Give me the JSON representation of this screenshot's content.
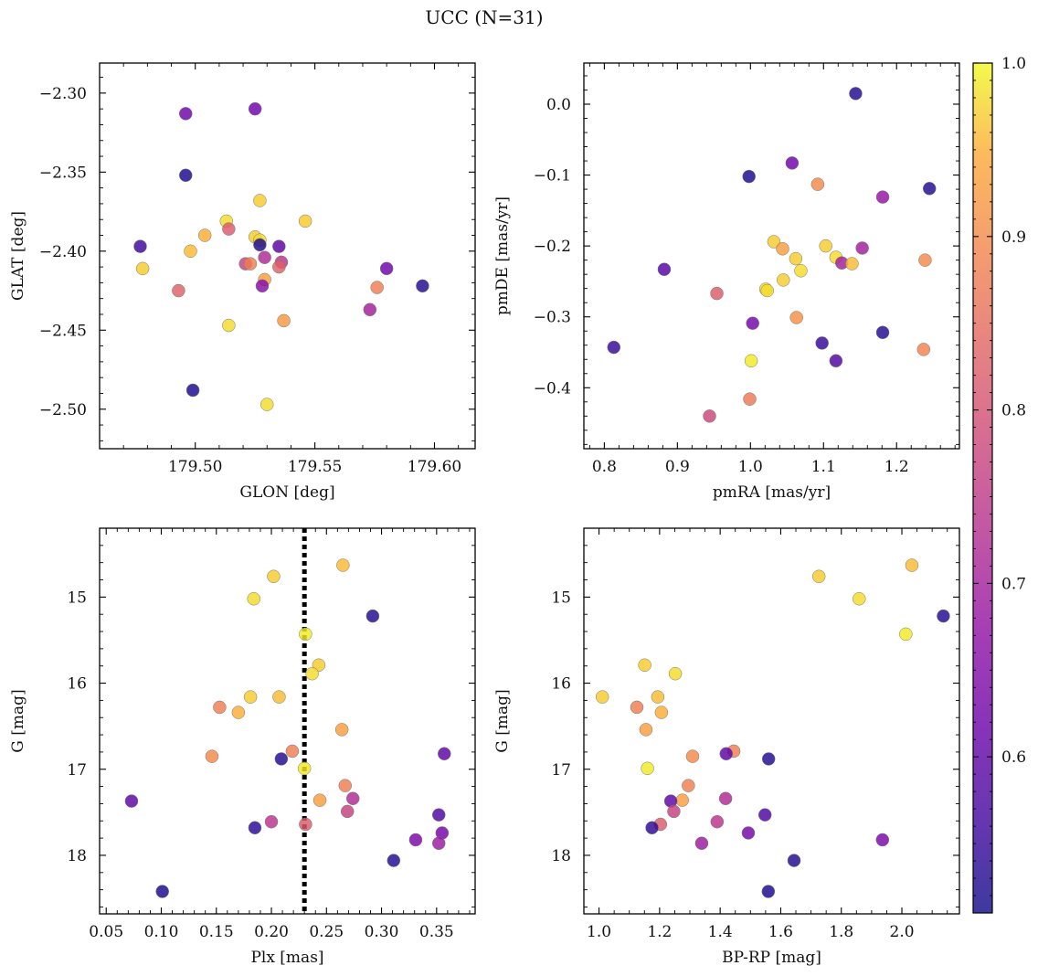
{
  "title": "UCC (N=31)",
  "colorbar": {
    "range": [
      0.51,
      1.0
    ],
    "ticks": [
      0.6,
      0.7,
      0.8,
      0.9,
      1.0
    ],
    "tick_labels": [
      "0.6",
      "0.7",
      "0.8",
      "0.9",
      "1.0"
    ],
    "colormap": "plasma"
  },
  "chart_data": [
    {
      "type": "scatter",
      "title": "",
      "xlabel": "GLON [deg]",
      "ylabel": "GLAT [deg]",
      "xlim": [
        179.46,
        179.617
      ],
      "ylim": [
        -2.525,
        -2.281
      ],
      "xticks": [
        179.5,
        179.55,
        179.6
      ],
      "xtick_labels": [
        "179.50",
        "179.55",
        "179.60"
      ],
      "yticks": [
        -2.3,
        -2.35,
        -2.4,
        -2.45,
        -2.5
      ],
      "ytick_labels": [
        "−2.30",
        "−2.35",
        "−2.40",
        "−2.45",
        "−2.50"
      ],
      "x_minor_step": 0.01,
      "y_minor_step": 0.01,
      "points": [
        {
          "x": 179.496,
          "y": -2.313,
          "c": 0.62
        },
        {
          "x": 179.525,
          "y": -2.31,
          "c": 0.62
        },
        {
          "x": 179.496,
          "y": -2.352,
          "c": 0.52
        },
        {
          "x": 179.527,
          "y": -2.368,
          "c": 0.97
        },
        {
          "x": 179.513,
          "y": -2.381,
          "c": 0.98
        },
        {
          "x": 179.546,
          "y": -2.381,
          "c": 0.97
        },
        {
          "x": 179.514,
          "y": -2.386,
          "c": 0.82
        },
        {
          "x": 179.504,
          "y": -2.39,
          "c": 0.95
        },
        {
          "x": 179.525,
          "y": -2.391,
          "c": 0.97
        },
        {
          "x": 179.527,
          "y": -2.393,
          "c": 0.98
        },
        {
          "x": 179.527,
          "y": -2.396,
          "c": 0.52
        },
        {
          "x": 179.535,
          "y": -2.397,
          "c": 0.6
        },
        {
          "x": 179.477,
          "y": -2.397,
          "c": 0.56
        },
        {
          "x": 179.498,
          "y": -2.4,
          "c": 0.96
        },
        {
          "x": 179.529,
          "y": -2.404,
          "c": 0.72
        },
        {
          "x": 179.536,
          "y": -2.407,
          "c": 0.74
        },
        {
          "x": 179.521,
          "y": -2.408,
          "c": 0.77
        },
        {
          "x": 179.523,
          "y": -2.408,
          "c": 0.88
        },
        {
          "x": 179.535,
          "y": -2.41,
          "c": 0.83
        },
        {
          "x": 179.478,
          "y": -2.411,
          "c": 0.97
        },
        {
          "x": 179.58,
          "y": -2.411,
          "c": 0.62
        },
        {
          "x": 179.529,
          "y": -2.418,
          "c": 0.93
        },
        {
          "x": 179.528,
          "y": -2.422,
          "c": 0.66
        },
        {
          "x": 179.595,
          "y": -2.422,
          "c": 0.53
        },
        {
          "x": 179.576,
          "y": -2.423,
          "c": 0.88
        },
        {
          "x": 179.493,
          "y": -2.425,
          "c": 0.83
        },
        {
          "x": 179.573,
          "y": -2.437,
          "c": 0.7
        },
        {
          "x": 179.537,
          "y": -2.444,
          "c": 0.92
        },
        {
          "x": 179.514,
          "y": -2.447,
          "c": 0.98
        },
        {
          "x": 179.499,
          "y": -2.488,
          "c": 0.52
        },
        {
          "x": 179.53,
          "y": -2.497,
          "c": 0.98
        }
      ]
    },
    {
      "type": "scatter",
      "title": "",
      "xlabel": "pmRA [mas/yr]",
      "ylabel": "pmDE [mas/yr]",
      "xlim": [
        0.772,
        1.286
      ],
      "ylim": [
        -0.486,
        0.058
      ],
      "xticks": [
        0.8,
        0.9,
        1.0,
        1.1,
        1.2
      ],
      "xtick_labels": [
        "0.8",
        "0.9",
        "1.0",
        "1.1",
        "1.2"
      ],
      "yticks": [
        0.0,
        -0.1,
        -0.2,
        -0.3,
        -0.4
      ],
      "ytick_labels": [
        "0.0",
        "−0.1",
        "−0.2",
        "−0.3",
        "−0.4"
      ],
      "x_minor_step": 0.02,
      "y_minor_step": 0.02,
      "points": [
        {
          "x": 1.144,
          "y": 0.015,
          "c": 0.53
        },
        {
          "x": 1.057,
          "y": -0.083,
          "c": 0.62
        },
        {
          "x": 0.998,
          "y": -0.102,
          "c": 0.52
        },
        {
          "x": 1.092,
          "y": -0.113,
          "c": 0.9
        },
        {
          "x": 1.245,
          "y": -0.119,
          "c": 0.53
        },
        {
          "x": 1.181,
          "y": -0.131,
          "c": 0.68
        },
        {
          "x": 1.032,
          "y": -0.194,
          "c": 0.97
        },
        {
          "x": 1.103,
          "y": -0.2,
          "c": 0.97
        },
        {
          "x": 1.153,
          "y": -0.203,
          "c": 0.7
        },
        {
          "x": 1.044,
          "y": -0.204,
          "c": 0.93
        },
        {
          "x": 1.117,
          "y": -0.216,
          "c": 0.98
        },
        {
          "x": 1.062,
          "y": -0.218,
          "c": 0.97
        },
        {
          "x": 1.239,
          "y": -0.22,
          "c": 0.9
        },
        {
          "x": 1.125,
          "y": -0.224,
          "c": 0.7
        },
        {
          "x": 1.139,
          "y": -0.225,
          "c": 0.96
        },
        {
          "x": 0.882,
          "y": -0.233,
          "c": 0.59
        },
        {
          "x": 1.069,
          "y": -0.235,
          "c": 0.98
        },
        {
          "x": 1.045,
          "y": -0.248,
          "c": 0.97
        },
        {
          "x": 1.021,
          "y": -0.261,
          "c": 0.98
        },
        {
          "x": 1.023,
          "y": -0.263,
          "c": 0.98
        },
        {
          "x": 0.954,
          "y": -0.267,
          "c": 0.82
        },
        {
          "x": 1.063,
          "y": -0.301,
          "c": 0.91
        },
        {
          "x": 1.003,
          "y": -0.309,
          "c": 0.63
        },
        {
          "x": 1.181,
          "y": -0.322,
          "c": 0.53
        },
        {
          "x": 1.098,
          "y": -0.337,
          "c": 0.55
        },
        {
          "x": 0.813,
          "y": -0.343,
          "c": 0.55
        },
        {
          "x": 1.237,
          "y": -0.346,
          "c": 0.89
        },
        {
          "x": 1.117,
          "y": -0.362,
          "c": 0.58
        },
        {
          "x": 1.001,
          "y": -0.362,
          "c": 0.99
        },
        {
          "x": 0.999,
          "y": -0.416,
          "c": 0.87
        },
        {
          "x": 0.944,
          "y": -0.44,
          "c": 0.78
        }
      ]
    },
    {
      "type": "scatter",
      "title": "",
      "xlabel": "Plx [mas]",
      "ylabel": "G [mag]",
      "xlim": [
        0.044,
        0.385
      ],
      "ylim": [
        18.68,
        14.2
      ],
      "xticks": [
        0.05,
        0.1,
        0.15,
        0.2,
        0.25,
        0.3,
        0.35
      ],
      "xtick_labels": [
        "0.05",
        "0.10",
        "0.15",
        "0.20",
        "0.25",
        "0.30",
        "0.35"
      ],
      "yticks": [
        15,
        16,
        17,
        18
      ],
      "ytick_labels": [
        "15",
        "16",
        "17",
        "18"
      ],
      "x_minor_step": 0.01,
      "y_minor_step": 0.2,
      "vline": {
        "x": 0.23,
        "style": "dotted"
      },
      "points": [
        {
          "x": 0.265,
          "y": 14.63,
          "c": 0.96
        },
        {
          "x": 0.202,
          "y": 14.76,
          "c": 0.97
        },
        {
          "x": 0.184,
          "y": 15.02,
          "c": 0.98
        },
        {
          "x": 0.292,
          "y": 15.22,
          "c": 0.53
        },
        {
          "x": 0.231,
          "y": 15.43,
          "c": 0.99
        },
        {
          "x": 0.243,
          "y": 15.79,
          "c": 0.97
        },
        {
          "x": 0.237,
          "y": 15.89,
          "c": 0.98
        },
        {
          "x": 0.181,
          "y": 16.16,
          "c": 0.97
        },
        {
          "x": 0.207,
          "y": 16.16,
          "c": 0.96
        },
        {
          "x": 0.153,
          "y": 16.28,
          "c": 0.88
        },
        {
          "x": 0.17,
          "y": 16.34,
          "c": 0.95
        },
        {
          "x": 0.264,
          "y": 16.54,
          "c": 0.93
        },
        {
          "x": 0.219,
          "y": 16.79,
          "c": 0.88
        },
        {
          "x": 0.357,
          "y": 16.82,
          "c": 0.6
        },
        {
          "x": 0.146,
          "y": 16.85,
          "c": 0.9
        },
        {
          "x": 0.209,
          "y": 16.88,
          "c": 0.53
        },
        {
          "x": 0.23,
          "y": 16.99,
          "c": 0.99
        },
        {
          "x": 0.267,
          "y": 17.19,
          "c": 0.88
        },
        {
          "x": 0.274,
          "y": 17.34,
          "c": 0.72
        },
        {
          "x": 0.244,
          "y": 17.36,
          "c": 0.93
        },
        {
          "x": 0.073,
          "y": 17.37,
          "c": 0.6
        },
        {
          "x": 0.269,
          "y": 17.49,
          "c": 0.77
        },
        {
          "x": 0.352,
          "y": 17.53,
          "c": 0.58
        },
        {
          "x": 0.2,
          "y": 17.61,
          "c": 0.74
        },
        {
          "x": 0.231,
          "y": 17.64,
          "c": 0.82
        },
        {
          "x": 0.185,
          "y": 17.68,
          "c": 0.54
        },
        {
          "x": 0.355,
          "y": 17.74,
          "c": 0.63
        },
        {
          "x": 0.331,
          "y": 17.82,
          "c": 0.64
        },
        {
          "x": 0.352,
          "y": 17.86,
          "c": 0.69
        },
        {
          "x": 0.311,
          "y": 18.06,
          "c": 0.53
        },
        {
          "x": 0.101,
          "y": 18.42,
          "c": 0.52
        }
      ]
    },
    {
      "type": "scatter",
      "title": "",
      "xlabel": "BP-RP [mag]",
      "ylabel": "G [mag]",
      "xlim": [
        0.95,
        2.19
      ],
      "ylim": [
        18.68,
        14.2
      ],
      "xticks": [
        1.0,
        1.2,
        1.4,
        1.6,
        1.8,
        2.0
      ],
      "xtick_labels": [
        "1.0",
        "1.2",
        "1.4",
        "1.6",
        "1.8",
        "2.0"
      ],
      "yticks": [
        15,
        16,
        17,
        18
      ],
      "ytick_labels": [
        "15",
        "16",
        "17",
        "18"
      ],
      "x_minor_step": 0.05,
      "y_minor_step": 0.2,
      "points": [
        {
          "x": 2.033,
          "y": 14.63,
          "c": 0.96
        },
        {
          "x": 1.726,
          "y": 14.76,
          "c": 0.97
        },
        {
          "x": 1.859,
          "y": 15.02,
          "c": 0.98
        },
        {
          "x": 2.137,
          "y": 15.22,
          "c": 0.53
        },
        {
          "x": 2.013,
          "y": 15.43,
          "c": 0.99
        },
        {
          "x": 1.151,
          "y": 15.79,
          "c": 0.97
        },
        {
          "x": 1.252,
          "y": 15.89,
          "c": 0.98
        },
        {
          "x": 1.011,
          "y": 16.16,
          "c": 0.97
        },
        {
          "x": 1.194,
          "y": 16.16,
          "c": 0.96
        },
        {
          "x": 1.125,
          "y": 16.28,
          "c": 0.88
        },
        {
          "x": 1.206,
          "y": 16.34,
          "c": 0.95
        },
        {
          "x": 1.155,
          "y": 16.54,
          "c": 0.93
        },
        {
          "x": 1.445,
          "y": 16.79,
          "c": 0.88
        },
        {
          "x": 1.42,
          "y": 16.82,
          "c": 0.6
        },
        {
          "x": 1.309,
          "y": 16.85,
          "c": 0.9
        },
        {
          "x": 1.56,
          "y": 16.88,
          "c": 0.53
        },
        {
          "x": 1.16,
          "y": 16.99,
          "c": 0.99
        },
        {
          "x": 1.295,
          "y": 17.19,
          "c": 0.88
        },
        {
          "x": 1.418,
          "y": 17.34,
          "c": 0.72
        },
        {
          "x": 1.275,
          "y": 17.36,
          "c": 0.93
        },
        {
          "x": 1.237,
          "y": 17.37,
          "c": 0.6
        },
        {
          "x": 1.247,
          "y": 17.49,
          "c": 0.77
        },
        {
          "x": 1.548,
          "y": 17.53,
          "c": 0.58
        },
        {
          "x": 1.39,
          "y": 17.61,
          "c": 0.74
        },
        {
          "x": 1.203,
          "y": 17.64,
          "c": 0.82
        },
        {
          "x": 1.175,
          "y": 17.68,
          "c": 0.54
        },
        {
          "x": 1.493,
          "y": 17.74,
          "c": 0.63
        },
        {
          "x": 1.936,
          "y": 17.82,
          "c": 0.64
        },
        {
          "x": 1.339,
          "y": 17.86,
          "c": 0.69
        },
        {
          "x": 1.644,
          "y": 18.06,
          "c": 0.53
        },
        {
          "x": 1.559,
          "y": 18.42,
          "c": 0.52
        }
      ]
    }
  ]
}
